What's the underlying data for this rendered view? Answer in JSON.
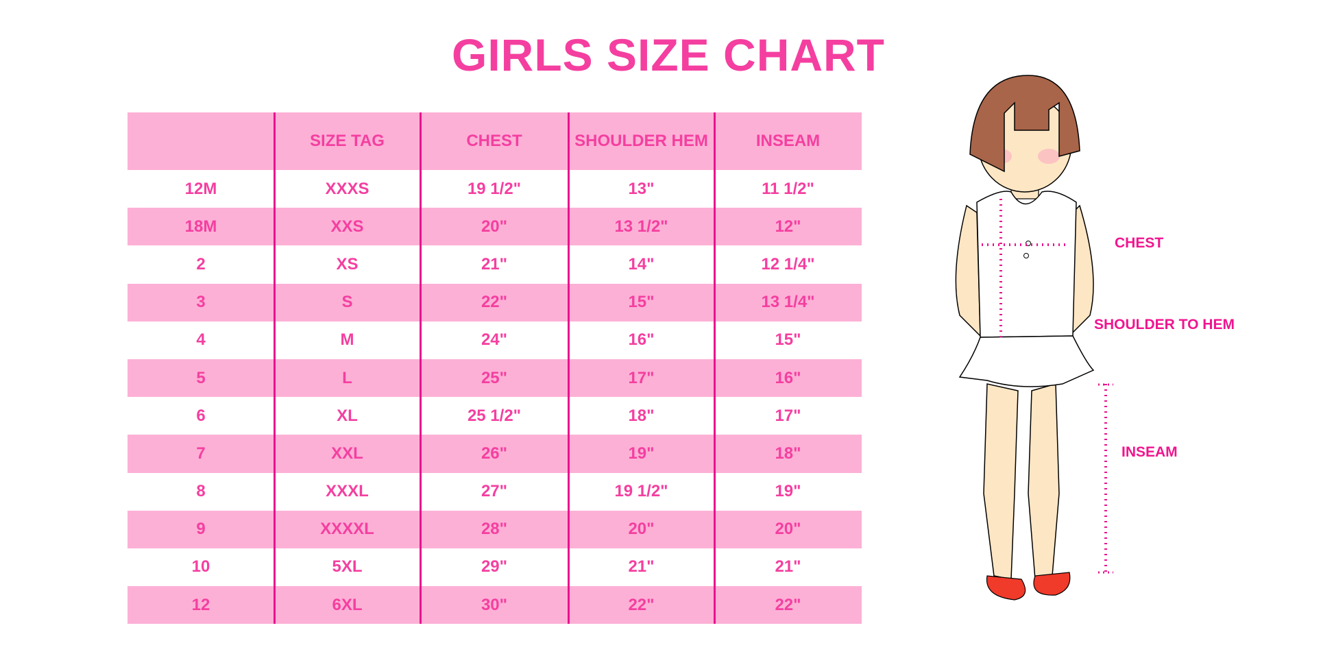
{
  "title": "GIRLS SIZE CHART",
  "table": {
    "headers": [
      "",
      "SIZE TAG",
      "CHEST",
      "SHOULDER HEM",
      "INSEAM"
    ],
    "rows": [
      [
        "12M",
        "XXXS",
        "19 1/2\"",
        "13\"",
        "11 1/2\""
      ],
      [
        "18M",
        "XXS",
        "20\"",
        "13 1/2\"",
        "12\""
      ],
      [
        "2",
        "XS",
        "21\"",
        "14\"",
        "12 1/4\""
      ],
      [
        "3",
        "S",
        "22\"",
        "15\"",
        "13 1/4\""
      ],
      [
        "4",
        "M",
        "24\"",
        "16\"",
        "15\""
      ],
      [
        "5",
        "L",
        "25\"",
        "17\"",
        "16\""
      ],
      [
        "6",
        "XL",
        "25 1/2\"",
        "18\"",
        "17\""
      ],
      [
        "7",
        "XXL",
        "26\"",
        "19\"",
        "18\""
      ],
      [
        "8",
        "XXXL",
        "27\"",
        "19 1/2\"",
        "19\""
      ],
      [
        "9",
        "XXXXL",
        "28\"",
        "20\"",
        "20\""
      ],
      [
        "10",
        "5XL",
        "29\"",
        "21\"",
        "21\""
      ],
      [
        "12",
        "6XL",
        "30\"",
        "22\"",
        "22\""
      ]
    ]
  },
  "figure": {
    "labels": {
      "chest": "CHEST",
      "shoulder_to_hem": "SHOULDER TO HEM",
      "inseam": "INSEAM"
    }
  },
  "colors": {
    "accent": "#f43fa0",
    "row_pink": "#fdb0d6",
    "divider": "#e8128e",
    "hair": "#a8654a",
    "skin": "#fde6c4"
  }
}
